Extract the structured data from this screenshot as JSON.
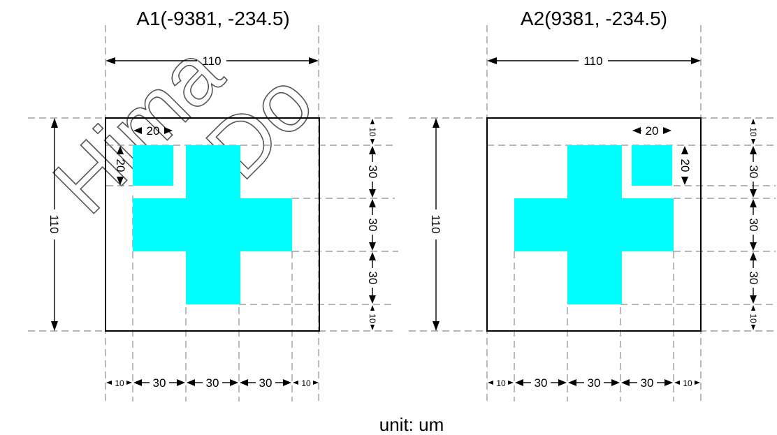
{
  "marks": [
    {
      "title": "A1(-9381, -234.5)",
      "width_label": "110",
      "height_label": "110",
      "square_width_label": "20",
      "square_height_label": "20",
      "bottom_dims": [
        "10",
        "30",
        "30",
        "30",
        "10"
      ],
      "right_dims": [
        "10",
        "30",
        "30",
        "30",
        "10"
      ]
    },
    {
      "title": "A2(9381, -234.5)",
      "width_label": "110",
      "height_label": "110",
      "square_width_label": "20",
      "square_height_label": "20",
      "bottom_dims": [
        "10",
        "30",
        "30",
        "30",
        "10"
      ],
      "right_dims": [
        "10",
        "30",
        "30",
        "30",
        "10"
      ]
    }
  ],
  "unit_label": "unit: um",
  "colors": {
    "fill": "#00ffff",
    "frame": "#000000",
    "guide": "#8c8c8c"
  }
}
